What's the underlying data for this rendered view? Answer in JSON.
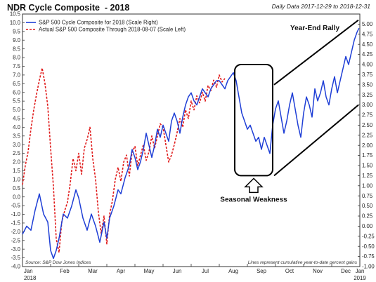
{
  "header": {
    "title": "NDR Cycle Composite  - 2018",
    "daily": "Daily Data 2017-12-29 to 2018-12-31"
  },
  "chart_data": {
    "type": "line",
    "title": "NDR Cycle Composite  - 2018",
    "grid": false,
    "legend_position": "top-left",
    "y_left": {
      "ylim": [
        -4.0,
        10.5
      ],
      "ticks": [
        -4.0,
        -3.5,
        -3.0,
        -2.5,
        -2.0,
        -1.5,
        -1.0,
        -0.5,
        0.0,
        0.5,
        1.0,
        1.5,
        2.0,
        2.5,
        3.0,
        3.5,
        4.0,
        4.5,
        5.0,
        5.5,
        6.0,
        6.5,
        7.0,
        7.5,
        8.0,
        8.5,
        9.0,
        9.5,
        10.0,
        10.5
      ],
      "tick_labels": [
        "-4.0",
        "-3.5",
        "-3.0",
        "-2.5",
        "-2.0",
        "-1.5",
        "-1.0",
        "-0.5",
        "0.0",
        "0.5",
        "1.0",
        "1.5",
        "2.0",
        "2.5",
        "3.0",
        "3.5",
        "4.0",
        "4.5",
        "5.0",
        "5.5",
        "6.0",
        "6.5",
        "7.0",
        "7.5",
        "8.0",
        "8.5",
        "9.0",
        "9.5",
        "10.0",
        "10.5"
      ]
    },
    "y_right": {
      "ylim": [
        -1.0,
        5.25
      ],
      "ticks": [
        -1.0,
        -0.75,
        -0.5,
        -0.25,
        0.0,
        0.25,
        0.5,
        0.75,
        1.0,
        1.25,
        1.5,
        1.75,
        2.0,
        2.25,
        2.5,
        2.75,
        3.0,
        3.25,
        3.5,
        3.75,
        4.0,
        4.25,
        4.5,
        4.75,
        5.0
      ],
      "tick_labels": [
        "-1.00",
        "-0.75",
        "-0.50",
        "-0.25",
        "0.00",
        "0.25",
        "0.50",
        "0.75",
        "1.00",
        "1.25",
        "1.50",
        "1.75",
        "2.00",
        "2.25",
        "2.50",
        "2.75",
        "3.00",
        "3.25",
        "3.50",
        "3.75",
        "4.00",
        "4.25",
        "4.50",
        "4.75",
        "5.00"
      ]
    },
    "x_axis": {
      "months": [
        "Jan",
        "Feb",
        "Mar",
        "Apr",
        "May",
        "Jun",
        "Jul",
        "Aug",
        "Sep",
        "Oct",
        "Nov",
        "Dec",
        "Jan"
      ],
      "year_labels": [
        {
          "month_index": 0,
          "label": "2018"
        },
        {
          "month_index": 12,
          "label": "2019"
        }
      ]
    },
    "series": [
      {
        "name": "S&P 500 Cycle Composite for 2018 (Scale Right)",
        "axis": "right",
        "color": "#1f3fd6",
        "style": "solid",
        "x_month": [
          0.0,
          0.15,
          0.3,
          0.45,
          0.6,
          0.75,
          0.9,
          1.0,
          1.1,
          1.2,
          1.3,
          1.45,
          1.6,
          1.75,
          1.9,
          2.0,
          2.15,
          2.3,
          2.45,
          2.6,
          2.75,
          2.9,
          3.0,
          3.1,
          3.25,
          3.4,
          3.5,
          3.65,
          3.8,
          3.9,
          4.0,
          4.1,
          4.2,
          4.3,
          4.4,
          4.5,
          4.6,
          4.7,
          4.8,
          4.9,
          5.0,
          5.1,
          5.2,
          5.3,
          5.4,
          5.5,
          5.6,
          5.7,
          5.8,
          5.9,
          6.0,
          6.1,
          6.2,
          6.3,
          6.4,
          6.5,
          6.6,
          6.7,
          6.8,
          6.9,
          7.0,
          7.1,
          7.2,
          7.3,
          7.4,
          7.5,
          7.6,
          7.7,
          7.8,
          7.9,
          8.0,
          8.1,
          8.2,
          8.3,
          8.4,
          8.5,
          8.6,
          8.7,
          8.8,
          8.9,
          9.0,
          9.1,
          9.2,
          9.3,
          9.4,
          9.5,
          9.6,
          9.7,
          9.8,
          9.9,
          10.0,
          10.1,
          10.2,
          10.3,
          10.4,
          10.5,
          10.6,
          10.7,
          10.8,
          10.9,
          11.0,
          11.1,
          11.2,
          11.3,
          11.4,
          11.5,
          11.6,
          11.7,
          11.8,
          11.9,
          11.97
        ],
        "y": [
          -0.2,
          0.0,
          -0.1,
          0.4,
          0.8,
          0.3,
          0.1,
          -0.6,
          -0.8,
          -0.6,
          -0.3,
          0.3,
          0.2,
          0.5,
          0.9,
          0.7,
          0.2,
          -0.1,
          0.3,
          0.0,
          -0.4,
          0.1,
          -0.3,
          0.2,
          0.5,
          0.9,
          0.8,
          1.2,
          1.5,
          1.9,
          1.7,
          1.4,
          1.6,
          1.9,
          2.3,
          2.0,
          1.7,
          2.0,
          2.4,
          2.2,
          2.5,
          2.3,
          2.1,
          2.6,
          2.8,
          2.6,
          2.3,
          2.7,
          3.0,
          3.2,
          3.3,
          3.1,
          3.0,
          3.2,
          3.4,
          3.3,
          3.2,
          3.4,
          3.5,
          3.6,
          3.6,
          3.5,
          3.4,
          3.6,
          3.7,
          3.8,
          3.6,
          3.2,
          2.8,
          2.6,
          2.4,
          2.5,
          2.3,
          2.1,
          2.2,
          1.9,
          2.2,
          2.0,
          1.8,
          2.5,
          2.9,
          3.1,
          2.7,
          2.3,
          2.6,
          3.0,
          3.3,
          2.9,
          2.5,
          2.2,
          2.8,
          3.2,
          3.0,
          2.7,
          3.4,
          3.1,
          3.3,
          3.6,
          3.2,
          3.0,
          3.4,
          3.7,
          3.3,
          3.6,
          3.9,
          4.2,
          4.0,
          4.3,
          4.6,
          4.8,
          4.9
        ]
      },
      {
        "name": "Actual S&P 500 Composite Through 2018-08-07 (Scale Left)",
        "axis": "left",
        "color": "#e01a1a",
        "style": "dashed",
        "x_month": [
          0.0,
          0.1,
          0.2,
          0.3,
          0.4,
          0.5,
          0.6,
          0.7,
          0.8,
          0.9,
          1.0,
          1.1,
          1.2,
          1.3,
          1.4,
          1.5,
          1.6,
          1.7,
          1.8,
          1.9,
          2.0,
          2.1,
          2.2,
          2.3,
          2.4,
          2.5,
          2.6,
          2.7,
          2.8,
          2.9,
          3.0,
          3.1,
          3.2,
          3.3,
          3.4,
          3.5,
          3.6,
          3.7,
          3.8,
          3.9,
          4.0,
          4.1,
          4.2,
          4.3,
          4.4,
          4.5,
          4.6,
          4.7,
          4.8,
          4.9,
          5.0,
          5.1,
          5.2,
          5.3,
          5.4,
          5.5,
          5.6,
          5.7,
          5.8,
          5.9,
          6.0,
          6.1,
          6.2,
          6.3,
          6.4,
          6.5,
          6.6,
          6.7,
          6.8,
          6.9,
          7.0,
          7.1,
          7.2
        ],
        "y": [
          0.7,
          1.8,
          2.6,
          3.9,
          5.0,
          5.9,
          6.7,
          7.4,
          6.5,
          5.2,
          2.8,
          0.6,
          -2.4,
          -3.2,
          -1.4,
          -0.8,
          -0.3,
          0.8,
          2.2,
          1.5,
          2.5,
          1.3,
          2.8,
          3.3,
          4.0,
          2.2,
          1.0,
          -0.9,
          -2.1,
          -1.1,
          -2.7,
          -1.0,
          -0.2,
          1.0,
          1.7,
          0.9,
          2.0,
          2.4,
          1.2,
          2.6,
          2.9,
          1.8,
          2.4,
          3.0,
          2.1,
          2.6,
          3.5,
          2.8,
          3.5,
          4.2,
          4.0,
          3.0,
          2.0,
          2.4,
          3.0,
          3.7,
          4.5,
          4.0,
          5.0,
          4.5,
          5.5,
          5.0,
          5.8,
          5.4,
          6.0,
          5.5,
          6.4,
          6.1,
          6.7,
          6.3,
          7.0,
          6.6,
          6.8
        ]
      }
    ],
    "annotations": {
      "year_end_rally": "Year-End Rally",
      "seasonal_weakness": "Seasonal Weakness",
      "source": "Source: S&P Dow Jones Indices",
      "note": "Lines represent cumulative year-to-date percent gains"
    }
  },
  "colors": {
    "blue": "#1f3fd6",
    "red": "#e01a1a",
    "axis": "#333333"
  }
}
